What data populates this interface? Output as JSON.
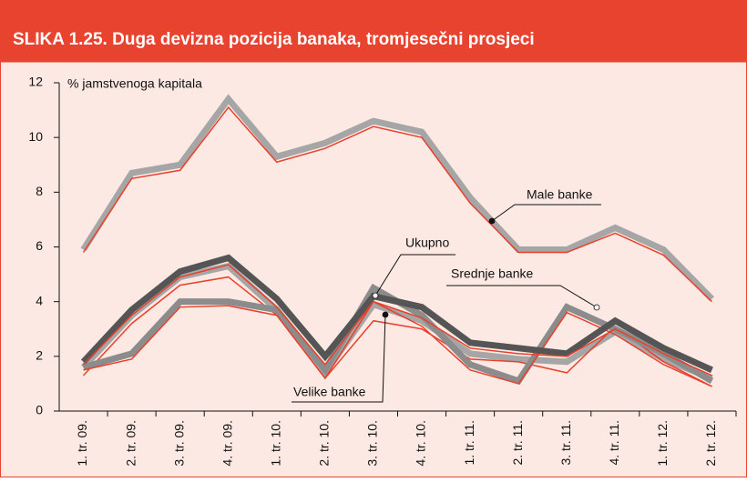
{
  "chart_data": {
    "type": "line",
    "title": "SLIKA 1.25. Duga devizna pozicija banaka, tromjesečni prosjeci",
    "y_label": "% jamstvenoga kapitala",
    "categories": [
      "1. tr. 09.",
      "2. tr. 09.",
      "3. tr. 09.",
      "4. tr. 09.",
      "1. tr. 10.",
      "2. tr. 10.",
      "3. tr. 10.",
      "4. tr. 10.",
      "1. tr. 11.",
      "2. tr. 11.",
      "3. tr. 11.",
      "4. tr. 11.",
      "1. tr. 12.",
      "2. tr. 12."
    ],
    "ylim": [
      0,
      12
    ],
    "yticks": [
      0,
      2,
      4,
      6,
      8,
      10,
      12
    ],
    "series": [
      {
        "name": "Male banke",
        "color": "#a6a6a6",
        "width": 7,
        "values": [
          5.9,
          8.7,
          9.0,
          11.4,
          9.3,
          9.8,
          10.6,
          10.2,
          7.8,
          5.9,
          5.9,
          6.7,
          5.9,
          4.1
        ]
      },
      {
        "color": "#e8412c",
        "width": 1.5,
        "values": [
          5.8,
          8.5,
          8.8,
          11.1,
          9.1,
          9.6,
          10.4,
          10.0,
          7.6,
          5.8,
          5.8,
          6.5,
          5.7,
          4.0
        ]
      },
      {
        "name": "Velike banke",
        "color": "#a6a6a6",
        "width": 7,
        "values": [
          1.6,
          3.5,
          4.9,
          5.3,
          3.7,
          1.4,
          3.9,
          3.3,
          2.1,
          1.9,
          1.8,
          2.9,
          1.9,
          1.2
        ]
      },
      {
        "color": "#e8412c",
        "width": 1.5,
        "values": [
          1.3,
          3.2,
          4.6,
          4.9,
          3.5,
          1.2,
          3.3,
          3.0,
          1.9,
          1.8,
          1.4,
          3.1,
          1.8,
          0.9
        ]
      },
      {
        "name": "Srednje banke",
        "color": "#8c8c8c",
        "width": 7,
        "values": [
          1.6,
          2.1,
          4.0,
          4.0,
          3.7,
          1.5,
          4.5,
          3.5,
          1.7,
          1.1,
          3.8,
          3.0,
          2.1,
          1.1
        ]
      },
      {
        "color": "#e8412c",
        "width": 1.5,
        "values": [
          1.5,
          1.9,
          3.8,
          3.85,
          3.5,
          1.2,
          4.0,
          3.1,
          1.5,
          1.0,
          3.6,
          2.8,
          1.7,
          0.9
        ]
      },
      {
        "name": "Ukupno",
        "color": "#555555",
        "width": 7,
        "values": [
          1.8,
          3.7,
          5.1,
          5.6,
          4.1,
          2.0,
          4.2,
          3.8,
          2.5,
          2.3,
          2.1,
          3.3,
          2.3,
          1.5
        ]
      },
      {
        "color": "#e8412c",
        "width": 1.5,
        "values": [
          1.7,
          3.5,
          4.9,
          5.35,
          3.8,
          1.7,
          4.0,
          3.4,
          2.3,
          2.1,
          2.0,
          3.0,
          2.1,
          1.3
        ]
      }
    ]
  }
}
